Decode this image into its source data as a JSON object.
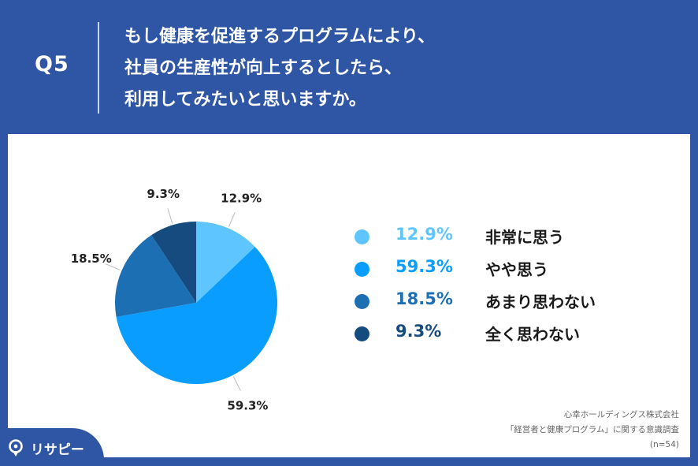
{
  "header": {
    "q_label": "Q5",
    "question_lines": [
      "もし健康を促進するプログラムにより、",
      "社員の生産性が向上するとしたら、",
      "利用してみたいと思いますか。"
    ]
  },
  "chart_data": {
    "type": "pie",
    "slices": [
      {
        "label": "非常に思う",
        "value": 12.9,
        "display": "12.9%",
        "color": "#5ec5ff"
      },
      {
        "label": "やや思う",
        "value": 59.3,
        "display": "59.3%",
        "color": "#099dff"
      },
      {
        "label": "あまり思わない",
        "value": 18.5,
        "display": "18.5%",
        "color": "#1d6fb4"
      },
      {
        "label": "全く思わない",
        "value": 9.3,
        "display": "9.3%",
        "color": "#154b7f"
      }
    ],
    "legend_position": "right",
    "start": "top",
    "direction": "clockwise"
  },
  "legend_value_colors": [
    "#5ec5ff",
    "#099dff",
    "#1d6fb4",
    "#154b7f"
  ],
  "source": {
    "line1": "心幸ホールディングス株式会社",
    "line2": "「経営者と健康プログラム」に関する意識調査",
    "line3": "(n=54)"
  },
  "logo": {
    "text": "リサピー",
    "icon": "location-pin-icon"
  },
  "colors": {
    "header_bg": "#2f55a5",
    "panel_bg": "#ffffff"
  }
}
